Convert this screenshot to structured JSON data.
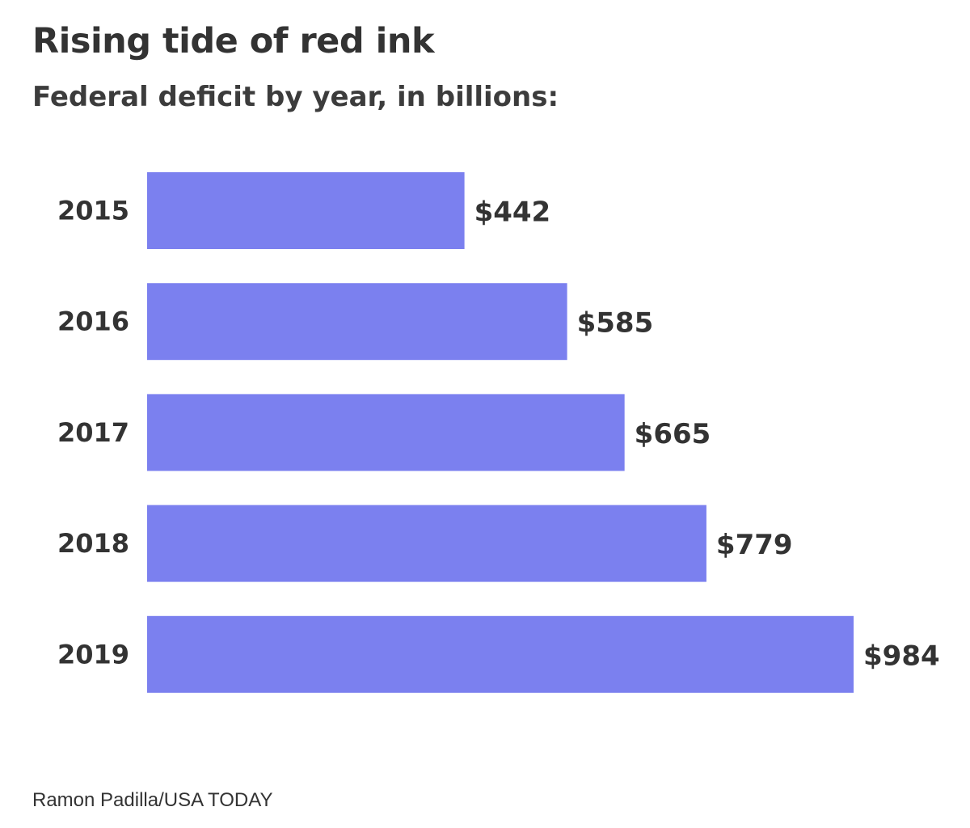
{
  "chart_data": {
    "type": "bar",
    "orientation": "horizontal",
    "title": "Rising tide of red ink",
    "subtitle": "Federal deficit by year, in billions:",
    "categories": [
      "2015",
      "2016",
      "2017",
      "2018",
      "2019"
    ],
    "values": [
      442,
      585,
      665,
      779,
      984
    ],
    "value_labels": [
      "$442",
      "$585",
      "$665",
      "$779",
      "$984"
    ],
    "xlabel": "",
    "ylabel": "",
    "xlim": [
      0,
      984
    ],
    "grid": false,
    "legend": "none",
    "bar_color": "#7b80ef",
    "label_color": "#333333"
  },
  "source": "Ramon Padilla/USA TODAY"
}
